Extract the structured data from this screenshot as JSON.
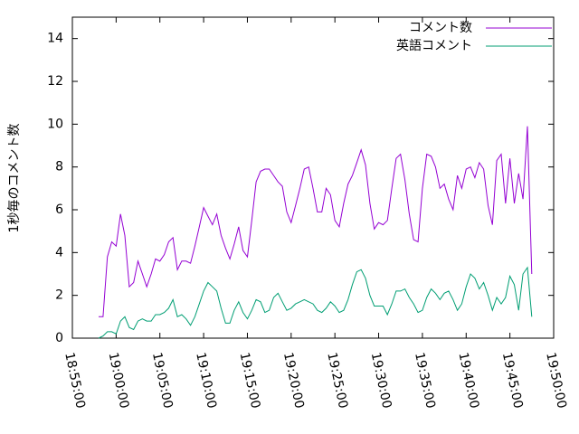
{
  "chart_data": {
    "type": "line",
    "ylabel": "1秒毎のコメント数",
    "x": [
      "18:58:00",
      "18:58:30",
      "18:59:00",
      "18:59:30",
      "19:00:00",
      "19:00:30",
      "19:01:00",
      "19:01:30",
      "19:02:00",
      "19:02:30",
      "19:03:00",
      "19:03:30",
      "19:04:00",
      "19:04:30",
      "19:05:00",
      "19:05:30",
      "19:06:00",
      "19:06:30",
      "19:07:00",
      "19:07:30",
      "19:08:00",
      "19:08:30",
      "19:09:00",
      "19:09:30",
      "19:10:00",
      "19:10:30",
      "19:11:00",
      "19:11:30",
      "19:12:00",
      "19:12:30",
      "19:13:00",
      "19:13:30",
      "19:14:00",
      "19:14:30",
      "19:15:00",
      "19:15:30",
      "19:16:00",
      "19:16:30",
      "19:17:00",
      "19:17:30",
      "19:18:00",
      "19:18:30",
      "19:19:00",
      "19:19:30",
      "19:20:00",
      "19:20:30",
      "19:21:00",
      "19:21:30",
      "19:22:00",
      "19:22:30",
      "19:23:00",
      "19:23:30",
      "19:24:00",
      "19:24:30",
      "19:25:00",
      "19:25:30",
      "19:26:00",
      "19:26:30",
      "19:27:00",
      "19:27:30",
      "19:28:00",
      "19:28:30",
      "19:29:00",
      "19:29:30",
      "19:30:00",
      "19:30:30",
      "19:31:00",
      "19:31:30",
      "19:32:00",
      "19:32:30",
      "19:33:00",
      "19:33:30",
      "19:34:00",
      "19:34:30",
      "19:35:00",
      "19:35:30",
      "19:36:00",
      "19:36:30",
      "19:37:00",
      "19:37:30",
      "19:38:00",
      "19:38:30",
      "19:39:00",
      "19:39:30",
      "19:40:00",
      "19:40:30",
      "19:41:00",
      "19:41:30",
      "19:42:00",
      "19:42:30",
      "19:43:00",
      "19:43:30",
      "19:44:00",
      "19:44:30",
      "19:45:00",
      "19:45:30",
      "19:46:00",
      "19:46:30",
      "19:47:00",
      "19:47:30"
    ],
    "series": [
      {
        "name": "コメント数",
        "color": "#9400d3",
        "values": [
          1.0,
          1.0,
          3.8,
          4.5,
          4.3,
          5.8,
          4.8,
          2.4,
          2.6,
          3.6,
          3.0,
          2.4,
          3.0,
          3.7,
          3.6,
          3.9,
          4.5,
          4.7,
          3.2,
          3.6,
          3.6,
          3.5,
          4.3,
          5.2,
          6.1,
          5.7,
          5.3,
          5.8,
          4.8,
          4.2,
          3.7,
          4.4,
          5.2,
          4.1,
          3.8,
          5.5,
          7.3,
          7.8,
          7.9,
          7.9,
          7.6,
          7.3,
          7.1,
          5.9,
          5.4,
          6.2,
          7.0,
          7.9,
          8.0,
          7.0,
          5.9,
          5.9,
          7.0,
          6.7,
          5.5,
          5.2,
          6.3,
          7.2,
          7.6,
          8.2,
          8.8,
          8.1,
          6.3,
          5.1,
          5.4,
          5.3,
          5.5,
          7.0,
          8.4,
          8.6,
          7.4,
          5.8,
          4.6,
          4.5,
          7.0,
          8.6,
          8.5,
          8.0,
          7.0,
          7.2,
          6.5,
          6.0,
          7.6,
          7.0,
          7.9,
          8.0,
          7.5,
          8.2,
          7.9,
          6.2,
          5.3,
          8.3,
          8.6,
          6.3,
          8.4,
          6.3,
          7.7,
          6.5,
          9.9,
          3.0
        ]
      },
      {
        "name": "英語コメント",
        "color": "#009e73",
        "values": [
          0.0,
          0.1,
          0.3,
          0.3,
          0.2,
          0.8,
          1.0,
          0.5,
          0.4,
          0.8,
          0.9,
          0.8,
          0.8,
          1.1,
          1.1,
          1.2,
          1.4,
          1.8,
          1.0,
          1.1,
          0.9,
          0.6,
          1.0,
          1.6,
          2.2,
          2.6,
          2.4,
          2.2,
          1.4,
          0.7,
          0.7,
          1.3,
          1.7,
          1.2,
          0.9,
          1.3,
          1.8,
          1.7,
          1.2,
          1.3,
          1.9,
          2.1,
          1.7,
          1.3,
          1.4,
          1.6,
          1.7,
          1.8,
          1.7,
          1.6,
          1.3,
          1.2,
          1.4,
          1.7,
          1.5,
          1.2,
          1.3,
          1.8,
          2.5,
          3.1,
          3.2,
          2.8,
          2.0,
          1.5,
          1.5,
          1.5,
          1.1,
          1.6,
          2.2,
          2.2,
          2.3,
          1.9,
          1.6,
          1.2,
          1.3,
          1.9,
          2.3,
          2.1,
          1.8,
          2.1,
          2.2,
          1.8,
          1.3,
          1.6,
          2.4,
          3.0,
          2.8,
          2.3,
          2.6,
          2.0,
          1.3,
          1.9,
          1.6,
          1.9,
          2.9,
          2.5,
          1.3,
          3.0,
          3.3,
          1.0
        ]
      }
    ],
    "xlim": [
      "18:55:00",
      "19:50:00"
    ],
    "xticks": [
      "18:55:00",
      "19:00:00",
      "19:05:00",
      "19:10:00",
      "19:15:00",
      "19:20:00",
      "19:25:00",
      "19:30:00",
      "19:35:00",
      "19:40:00",
      "19:45:00",
      "19:50:00"
    ],
    "ylim": [
      0,
      15
    ],
    "yticks": [
      0,
      2,
      4,
      6,
      8,
      10,
      12,
      14
    ],
    "legend": "top-right"
  }
}
